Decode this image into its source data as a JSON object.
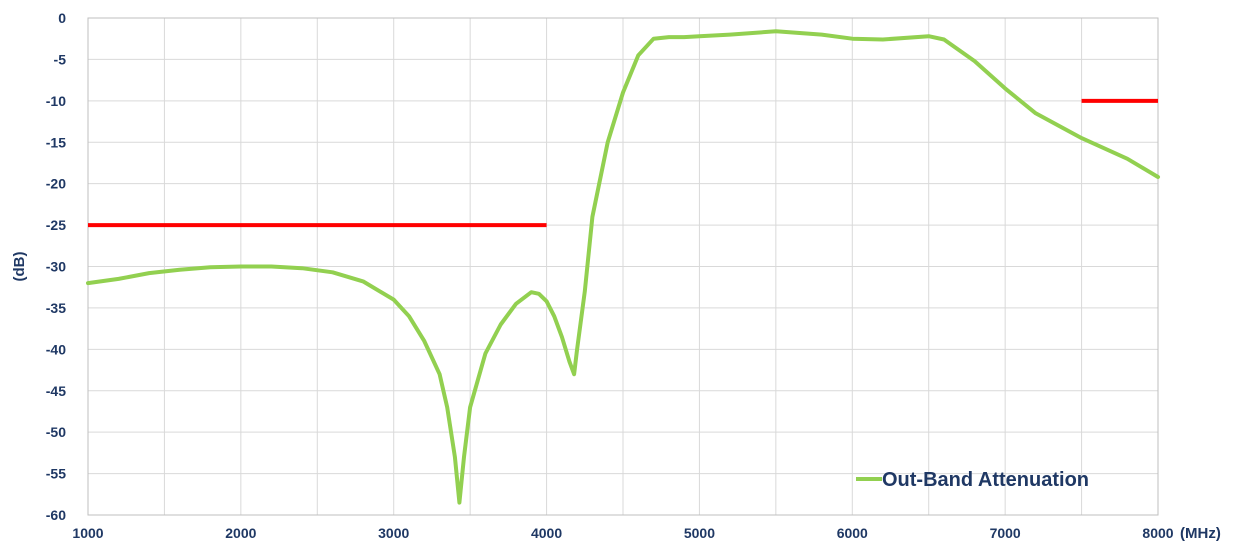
{
  "chart_data": {
    "type": "line",
    "title": "",
    "xlabel": "(MHz)",
    "ylabel": "(dB)",
    "xlim": [
      1000,
      8000
    ],
    "ylim": [
      -60,
      0
    ],
    "x_ticks": [
      1000,
      2000,
      3000,
      4000,
      5000,
      6000,
      7000,
      8000
    ],
    "y_ticks": [
      0,
      -5,
      -10,
      -15,
      -20,
      -25,
      -30,
      -35,
      -40,
      -45,
      -50,
      -55,
      -60
    ],
    "grid": true,
    "legend_position": "bottom-right",
    "colors": {
      "axis_text": "#1f3864",
      "series": "#92d050",
      "limit": "#ff0000",
      "grid": "#d9d9d9"
    },
    "series": [
      {
        "name": "Out-Band Attenuation",
        "x": [
          1000,
          1200,
          1400,
          1600,
          1800,
          2000,
          2200,
          2400,
          2600,
          2800,
          3000,
          3100,
          3200,
          3300,
          3350,
          3400,
          3430,
          3460,
          3500,
          3600,
          3700,
          3800,
          3900,
          3950,
          4000,
          4050,
          4100,
          4150,
          4180,
          4200,
          4250,
          4300,
          4400,
          4500,
          4600,
          4700,
          4800,
          4900,
          5000,
          5200,
          5500,
          5800,
          6000,
          6200,
          6500,
          6600,
          6800,
          7000,
          7200,
          7500,
          7800,
          8000
        ],
        "y": [
          -32,
          -31.5,
          -30.8,
          -30.4,
          -30.1,
          -30,
          -30,
          -30.2,
          -30.7,
          -31.8,
          -34,
          -36,
          -39,
          -43,
          -47,
          -53,
          -58.5,
          -53,
          -47,
          -40.5,
          -37,
          -34.5,
          -33.1,
          -33.3,
          -34.2,
          -36,
          -38.5,
          -41.5,
          -43,
          -40,
          -33,
          -24,
          -15,
          -9,
          -4.5,
          -2.5,
          -2.3,
          -2.3,
          -2.2,
          -2,
          -1.6,
          -2,
          -2.5,
          -2.6,
          -2.2,
          -2.6,
          -5.2,
          -8.5,
          -11.5,
          -14.5,
          -17,
          -19.2
        ]
      }
    ],
    "limit_lines": [
      {
        "x": [
          1000,
          4000
        ],
        "y": -25
      },
      {
        "x": [
          7500,
          8000
        ],
        "y": -10
      }
    ]
  }
}
